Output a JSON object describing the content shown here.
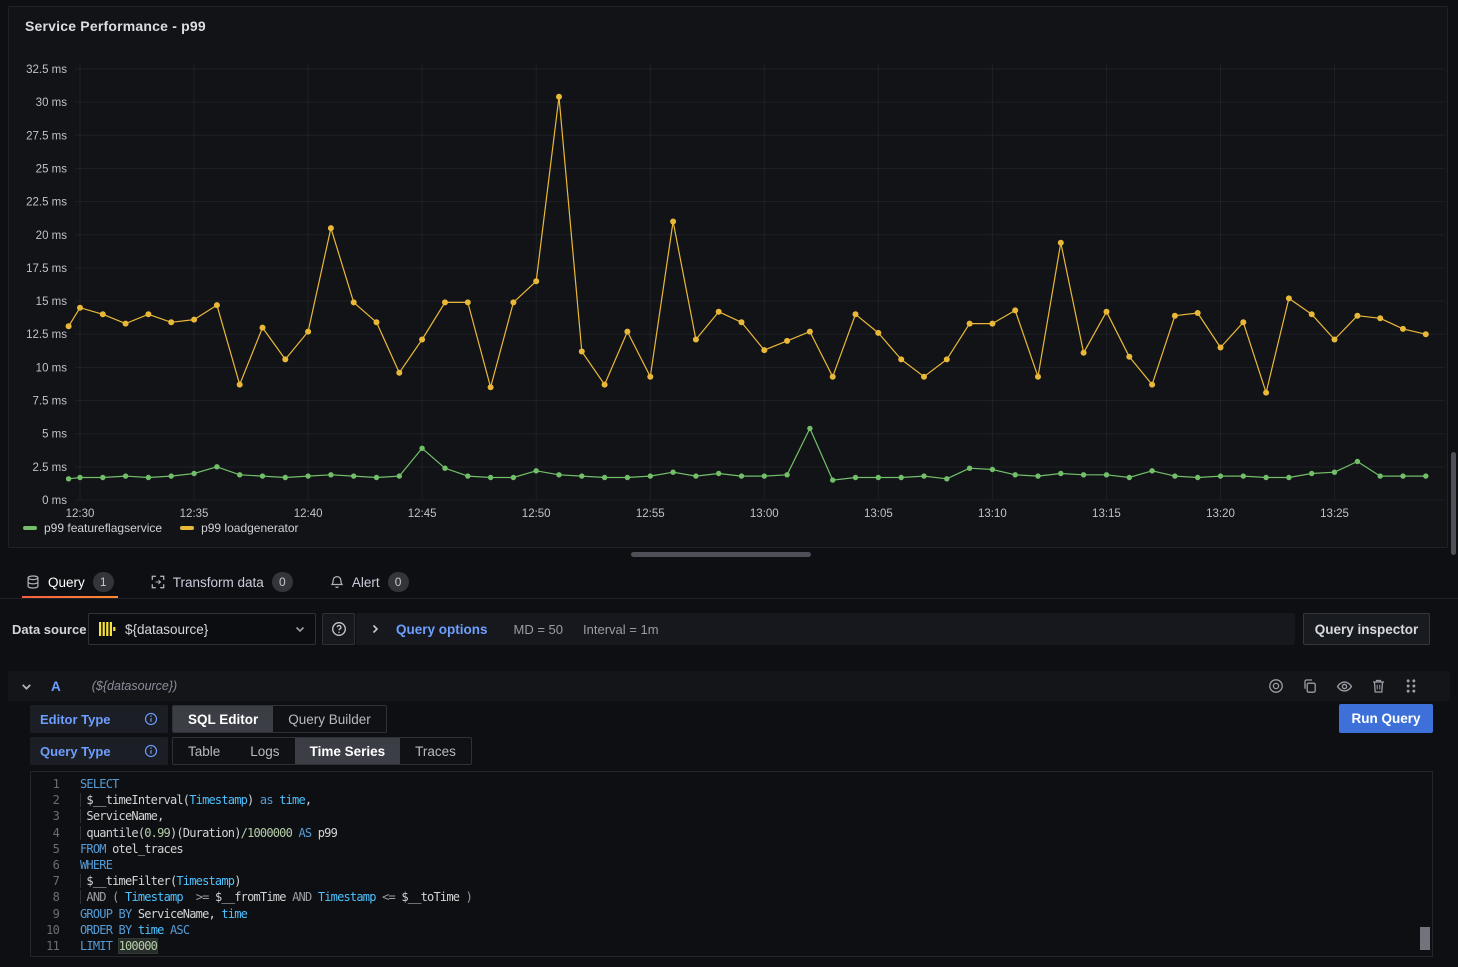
{
  "panel": {
    "title": "Service Performance - p99"
  },
  "chart_data": {
    "type": "line",
    "title": "Service Performance - p99",
    "unit": "ms",
    "ylim": [
      0,
      32.5
    ],
    "grid": true,
    "legend_position": "bottom-left",
    "y_ticks": [
      {
        "v": 0,
        "label": "0 ms"
      },
      {
        "v": 2.5,
        "label": "2.5 ms"
      },
      {
        "v": 5,
        "label": "5 ms"
      },
      {
        "v": 7.5,
        "label": "7.5 ms"
      },
      {
        "v": 10,
        "label": "10 ms"
      },
      {
        "v": 12.5,
        "label": "12.5 ms"
      },
      {
        "v": 15,
        "label": "15 ms"
      },
      {
        "v": 17.5,
        "label": "17.5 ms"
      },
      {
        "v": 20,
        "label": "20 ms"
      },
      {
        "v": 22.5,
        "label": "22.5 ms"
      },
      {
        "v": 25,
        "label": "25 ms"
      },
      {
        "v": 27.5,
        "label": "27.5 ms"
      },
      {
        "v": 30,
        "label": "30 ms"
      },
      {
        "v": 32.5,
        "label": "32.5 ms"
      }
    ],
    "x_ticks": [
      {
        "m": 0,
        "label": "12:30"
      },
      {
        "m": 5,
        "label": "12:35"
      },
      {
        "m": 10,
        "label": "12:40"
      },
      {
        "m": 15,
        "label": "12:45"
      },
      {
        "m": 20,
        "label": "12:50"
      },
      {
        "m": 25,
        "label": "12:55"
      },
      {
        "m": 30,
        "label": "13:00"
      },
      {
        "m": 35,
        "label": "13:05"
      },
      {
        "m": 40,
        "label": "13:10"
      },
      {
        "m": 45,
        "label": "13:15"
      },
      {
        "m": 50,
        "label": "13:20"
      },
      {
        "m": 55,
        "label": "13:25"
      }
    ],
    "x_offsets_min": [
      -0.5,
      0,
      1,
      2,
      3,
      4,
      5,
      6,
      7,
      8,
      9,
      10,
      11,
      12,
      13,
      14,
      15,
      16,
      17,
      18,
      19,
      20,
      21,
      22,
      23,
      24,
      25,
      26,
      27,
      28,
      29,
      30,
      31,
      32,
      33,
      34,
      35,
      36,
      37,
      38,
      39,
      40,
      41,
      42,
      43,
      44,
      45,
      46,
      47,
      48,
      49,
      50,
      51,
      52,
      53,
      54,
      55,
      56,
      57,
      58,
      59
    ],
    "series": [
      {
        "name": "p99 featureflagservice",
        "color": "#73bf69",
        "values": [
          1.6,
          1.7,
          1.7,
          1.8,
          1.7,
          1.8,
          2.0,
          2.5,
          1.9,
          1.8,
          1.7,
          1.8,
          1.9,
          1.8,
          1.7,
          1.8,
          3.9,
          2.4,
          1.8,
          1.7,
          1.7,
          2.2,
          1.9,
          1.8,
          1.7,
          1.7,
          1.8,
          2.1,
          1.8,
          2.0,
          1.8,
          1.8,
          1.9,
          5.4,
          1.5,
          1.7,
          1.7,
          1.7,
          1.8,
          1.6,
          2.4,
          2.3,
          1.9,
          1.8,
          2.0,
          1.9,
          1.9,
          1.7,
          2.2,
          1.8,
          1.7,
          1.8,
          1.8,
          1.7,
          1.7,
          2.0,
          2.1,
          2.9,
          1.8,
          1.8,
          1.8
        ]
      },
      {
        "name": "p99 loadgenerator",
        "color": "#eab839",
        "values": [
          13.1,
          14.5,
          14.0,
          13.3,
          14.0,
          13.4,
          13.6,
          14.7,
          8.7,
          13.0,
          10.6,
          12.7,
          20.5,
          14.9,
          13.4,
          9.6,
          12.1,
          14.9,
          14.9,
          8.5,
          14.9,
          16.5,
          30.4,
          11.2,
          8.7,
          12.7,
          9.3,
          21.0,
          12.1,
          14.2,
          13.4,
          11.3,
          12.0,
          12.7,
          9.3,
          14.0,
          12.6,
          10.6,
          9.3,
          10.6,
          13.3,
          13.3,
          14.3,
          9.3,
          19.4,
          11.1,
          14.2,
          10.8,
          8.7,
          13.9,
          14.1,
          11.5,
          13.4,
          8.1,
          15.2,
          14.0,
          12.1,
          13.9,
          13.7,
          12.9,
          12.5
        ]
      }
    ]
  },
  "tabs": [
    {
      "label": "Query",
      "count": "1"
    },
    {
      "label": "Transform data",
      "count": "0"
    },
    {
      "label": "Alert",
      "count": "0"
    }
  ],
  "toolbar": {
    "datasource_label": "Data source",
    "datasource_value": "${datasource}",
    "query_options_label": "Query options",
    "max_data_points": "MD = 50",
    "interval": "Interval = 1m",
    "inspector_label": "Query inspector"
  },
  "query_row": {
    "ref": "A",
    "datasource": "(${datasource})"
  },
  "editor": {
    "editor_type_label": "Editor Type",
    "editor_types": [
      "SQL Editor",
      "Query Builder"
    ],
    "editor_type_selected": "SQL Editor",
    "query_type_label": "Query Type",
    "query_types": [
      "Table",
      "Logs",
      "Time Series",
      "Traces"
    ],
    "query_type_selected": "Time Series",
    "run_label": "Run Query"
  },
  "sql": {
    "lines": [
      {
        "n": 1,
        "indent": false,
        "tokens": [
          [
            "kw",
            "SELECT"
          ]
        ]
      },
      {
        "n": 2,
        "indent": true,
        "tokens": [
          [
            "plain",
            " $__timeInterval("
          ],
          [
            "type",
            "Timestamp"
          ],
          [
            "plain",
            ") "
          ],
          [
            "kw",
            "as"
          ],
          [
            "plain",
            " "
          ],
          [
            "type",
            "time"
          ],
          [
            "plain",
            ","
          ]
        ]
      },
      {
        "n": 3,
        "indent": true,
        "tokens": [
          [
            "plain",
            " ServiceName,"
          ]
        ]
      },
      {
        "n": 4,
        "indent": true,
        "tokens": [
          [
            "plain",
            " quantile("
          ],
          [
            "num",
            "0.99"
          ],
          [
            "plain",
            ")(Duration)"
          ],
          [
            "num",
            "/1000000"
          ],
          [
            "plain",
            " "
          ],
          [
            "kw",
            "AS"
          ],
          [
            "plain",
            " p99"
          ]
        ]
      },
      {
        "n": 5,
        "indent": false,
        "tokens": [
          [
            "kw",
            "FROM"
          ],
          [
            "plain",
            " otel_traces"
          ]
        ]
      },
      {
        "n": 6,
        "indent": false,
        "tokens": [
          [
            "kw",
            "WHERE"
          ]
        ]
      },
      {
        "n": 7,
        "indent": true,
        "tokens": [
          [
            "plain",
            " $__timeFilter("
          ],
          [
            "type",
            "Timestamp"
          ],
          [
            "plain",
            ")"
          ]
        ]
      },
      {
        "n": 8,
        "indent": true,
        "tokens": [
          [
            "op",
            " AND"
          ],
          [
            "plain",
            " "
          ],
          [
            "op",
            "("
          ],
          [
            "plain",
            " "
          ],
          [
            "type",
            "Timestamp"
          ],
          [
            "plain",
            "  "
          ],
          [
            "op",
            ">="
          ],
          [
            "plain",
            " $__fromTime "
          ],
          [
            "op",
            "AND"
          ],
          [
            "plain",
            " "
          ],
          [
            "type",
            "Timestamp"
          ],
          [
            "plain",
            " "
          ],
          [
            "op",
            "<="
          ],
          [
            "plain",
            " $__toTime "
          ],
          [
            "op",
            ")"
          ]
        ]
      },
      {
        "n": 9,
        "indent": false,
        "tokens": [
          [
            "kw",
            "GROUP BY"
          ],
          [
            "plain",
            " ServiceName, "
          ],
          [
            "type",
            "time"
          ]
        ]
      },
      {
        "n": 10,
        "indent": false,
        "tokens": [
          [
            "kw",
            "ORDER BY"
          ],
          [
            "plain",
            " "
          ],
          [
            "type",
            "time"
          ],
          [
            "plain",
            " "
          ],
          [
            "kw",
            "ASC"
          ]
        ]
      },
      {
        "n": 11,
        "indent": false,
        "tokens": [
          [
            "kw",
            "LIMIT"
          ],
          [
            "plain",
            " "
          ],
          [
            "numhl",
            "100000"
          ]
        ]
      }
    ]
  },
  "colors": {
    "accent_orange": "#ff780a",
    "primary_blue": "#3d71d9",
    "link_blue": "#6e9fff",
    "series_green": "#73bf69",
    "series_yellow": "#eab839"
  }
}
